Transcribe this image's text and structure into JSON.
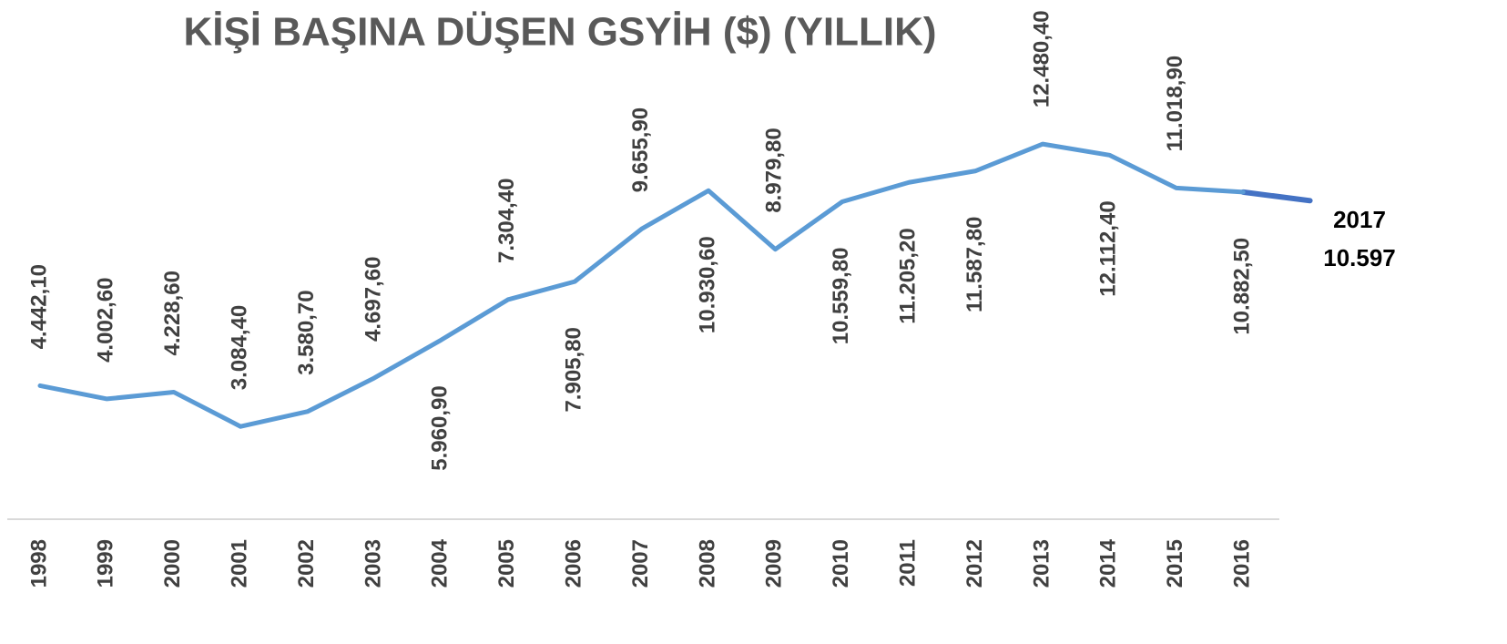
{
  "chart_data": {
    "type": "line",
    "title": "KİŞİ BAŞINA DÜŞEN GSYİH ($) (YILLIK)",
    "categories": [
      "1998",
      "1999",
      "2000",
      "2001",
      "2002",
      "2003",
      "2004",
      "2005",
      "2006",
      "2007",
      "2008",
      "2009",
      "2010",
      "2011",
      "2012",
      "2013",
      "2014",
      "2015",
      "2016"
    ],
    "values": [
      4442.1,
      4002.6,
      4228.6,
      3084.4,
      3580.7,
      4697.6,
      5960.9,
      7304.4,
      7905.8,
      9655.9,
      10930.6,
      8979.8,
      10559.8,
      11205.2,
      11587.8,
      12480.4,
      12112.4,
      11018.9,
      10882.5
    ],
    "value_labels": [
      "4.442,10",
      "4.002,60",
      "4.228,60",
      "3.084,40",
      "3.580,70",
      "4.697,60",
      "5.960,90",
      "7.304,40",
      "7.905,80",
      "9.655,90",
      "10.930,60",
      "8.979,80",
      "10.559,80",
      "11.205,20",
      "11.587,80",
      "12.480,40",
      "12.112,40",
      "11.018,90",
      "10.882,50"
    ],
    "color": "#5b9bd5",
    "projection": {
      "category": "2017",
      "value": 10597,
      "value_label": "10.597",
      "color": "#4472c4"
    },
    "ylim": [
      0,
      14000
    ]
  }
}
